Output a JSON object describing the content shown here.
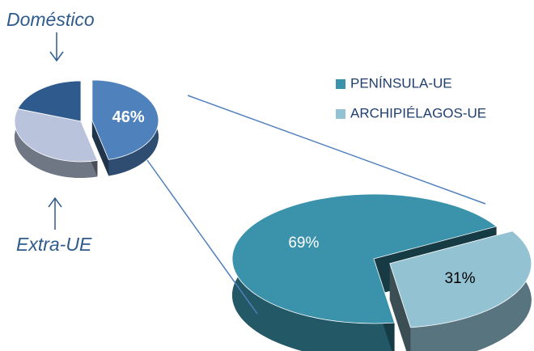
{
  "chart_data": [
    {
      "type": "pie",
      "categories": [
        null,
        "Extra-UE",
        "Doméstico"
      ],
      "values": [
        46,
        34,
        20
      ],
      "value_labels": [
        "46%",
        null,
        null
      ],
      "colors": [
        "#4f81bd",
        "#b9c4dc",
        "#2f5a8e"
      ]
    },
    {
      "type": "pie",
      "categories": [
        "PENÍNSULA-UE",
        "ARCHIPIÉLAGOS-UE"
      ],
      "values": [
        69,
        31
      ],
      "value_labels": [
        "69%",
        "31%"
      ],
      "colors": [
        "#3a93aa",
        "#93c2d3"
      ],
      "legend": "top-right"
    }
  ]
}
